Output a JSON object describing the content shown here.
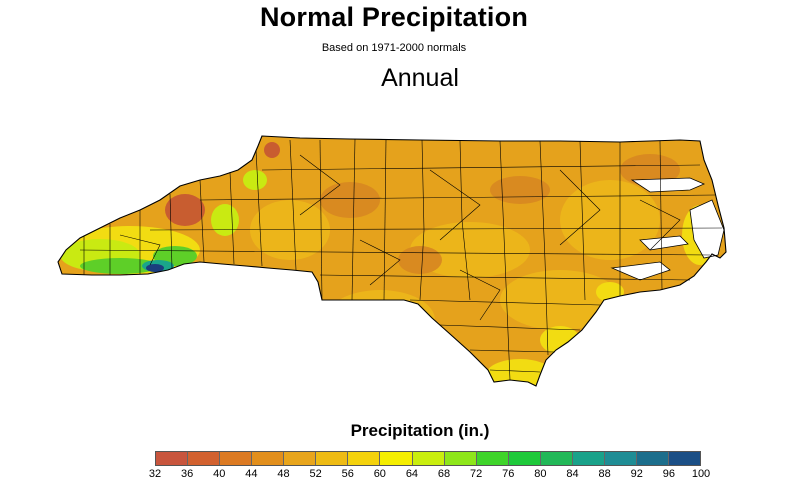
{
  "title": "Normal Precipitation",
  "subtitle": "Based on 1971-2000 normals",
  "period": "Annual",
  "legend": {
    "title": "Precipitation (in.)",
    "ticks": [
      "32",
      "36",
      "40",
      "44",
      "48",
      "52",
      "56",
      "60",
      "64",
      "68",
      "72",
      "76",
      "80",
      "84",
      "88",
      "92",
      "96",
      "100"
    ],
    "colors": [
      "#c8553d",
      "#d2612f",
      "#dc7a22",
      "#e28f1c",
      "#e8a51c",
      "#eebb14",
      "#f4d20c",
      "#f5ee00",
      "#c9ee0e",
      "#8ee61a",
      "#3fd42a",
      "#1ec93a",
      "#22b858",
      "#1aa28a",
      "#1f8d95",
      "#1c6e8c",
      "#1b4f86",
      "#1b2f7a"
    ]
  },
  "map": {
    "region_name": "North Carolina",
    "colors": {
      "base": "#e5a21c",
      "light": "#ecb51a",
      "dark": "#d98a20",
      "yellow": "#f2dc12",
      "lime": "#c9ea12",
      "green": "#5ecf28",
      "teal": "#1aa58a",
      "navy": "#1b3d7e",
      "brown": "#c85d30",
      "water": "#ffffff",
      "outline": "#000000"
    }
  }
}
